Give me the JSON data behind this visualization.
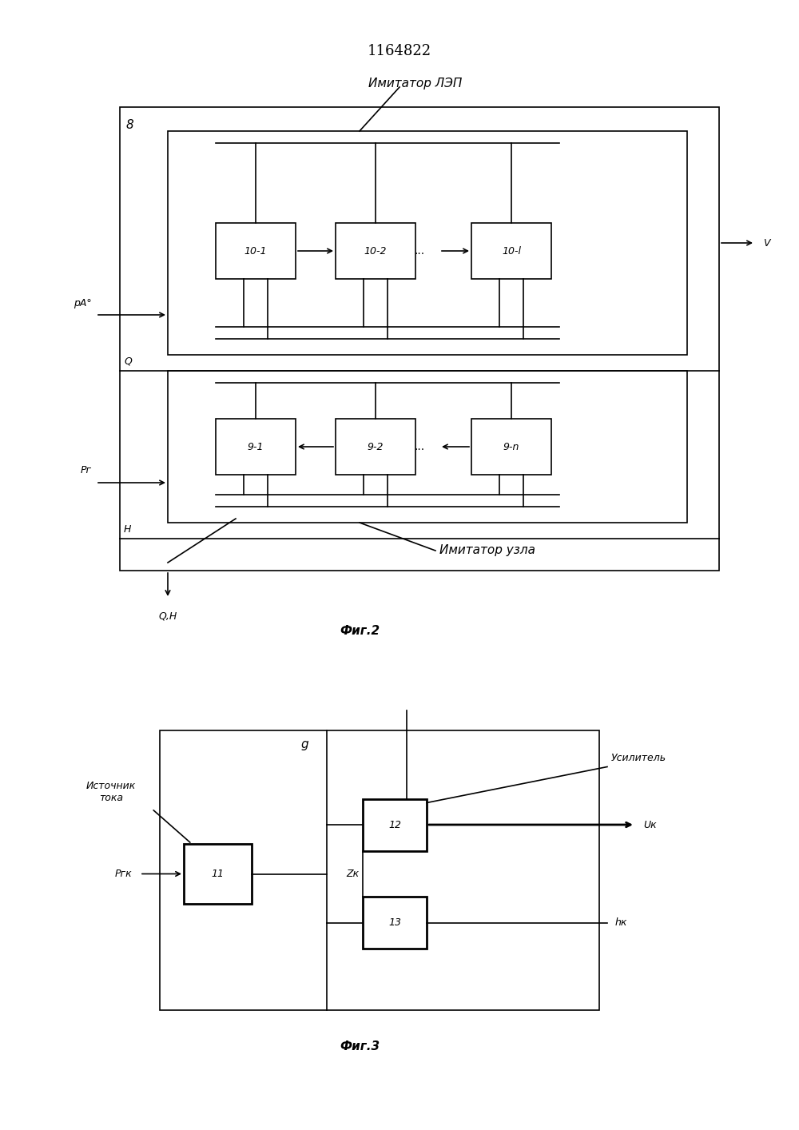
{
  "title": "1164822",
  "title_fontsize": 13,
  "bg_color": "#ffffff",
  "fig2_label": "Фиг.2",
  "fig3_label": "Фиг.3",
  "imitator_lep_label": "Имитатор ЛЭП",
  "imitator_uzla_label": "Имитатор узла",
  "istochnik_label": "Источник\nтока",
  "usilitel_label": "Усилитель",
  "block8_label": "8",
  "block9_label": "g",
  "box_10_1": "10-1",
  "box_10_2": "10-2",
  "box_10_l": "10-l",
  "box_9_1": "9-1",
  "box_9_2": "9-2",
  "box_9_n": "9-n",
  "box_11": "11",
  "box_12": "12",
  "box_13": "13",
  "label_pA0": "pА°",
  "label_Q": "Q",
  "label_H": "H",
  "label_Pg": "Pг",
  "label_QH": "Q,H",
  "label_V": "V",
  "label_Pgk": "Pгк",
  "label_Vk": "Uк",
  "label_hk": "hк",
  "label_Zk": "Zк",
  "dots": "..."
}
